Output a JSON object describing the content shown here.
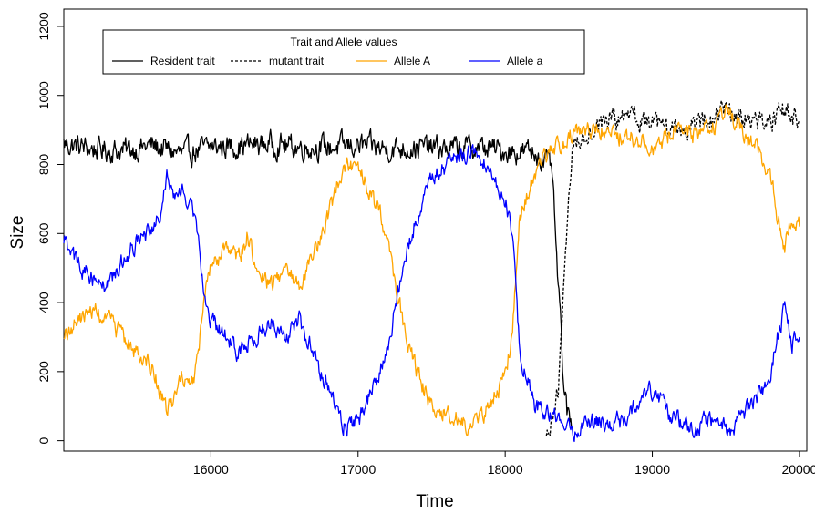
{
  "chart_data": {
    "type": "line",
    "title": "",
    "xlabel": "Time",
    "ylabel": "Size",
    "xlim": [
      15000,
      20050
    ],
    "ylim": [
      -30,
      1250
    ],
    "x_ticks": [
      16000,
      17000,
      18000,
      19000,
      20000
    ],
    "y_ticks": [
      0,
      200,
      400,
      600,
      800,
      1000,
      1200
    ],
    "grid": false,
    "legend": {
      "title": "Trait and Allele values",
      "placement": "top-left"
    },
    "series": [
      {
        "name": "Resident trait",
        "color": "#000000",
        "dash": "solid",
        "noise": 28,
        "points": [
          [
            15000,
            860
          ],
          [
            15200,
            845
          ],
          [
            15400,
            840
          ],
          [
            15600,
            855
          ],
          [
            15800,
            830
          ],
          [
            16000,
            850
          ],
          [
            16200,
            855
          ],
          [
            16400,
            860
          ],
          [
            16600,
            850
          ],
          [
            16800,
            850
          ],
          [
            17000,
            855
          ],
          [
            17200,
            845
          ],
          [
            17400,
            850
          ],
          [
            17600,
            845
          ],
          [
            17800,
            850
          ],
          [
            18000,
            840
          ],
          [
            18200,
            835
          ],
          [
            18280,
            810
          ],
          [
            18320,
            780
          ],
          [
            18340,
            600
          ],
          [
            18360,
            450
          ],
          [
            18380,
            300
          ],
          [
            18400,
            150
          ],
          [
            18420,
            80
          ],
          [
            18450,
            40
          ]
        ]
      },
      {
        "name": "mutant trait",
        "color": "#000000",
        "dash": "dashed",
        "noise": 25,
        "points": [
          [
            18280,
            10
          ],
          [
            18320,
            40
          ],
          [
            18360,
            150
          ],
          [
            18400,
            450
          ],
          [
            18430,
            700
          ],
          [
            18460,
            860
          ],
          [
            18550,
            890
          ],
          [
            18700,
            930
          ],
          [
            18900,
            930
          ],
          [
            19100,
            900
          ],
          [
            19300,
            915
          ],
          [
            19500,
            950
          ],
          [
            19700,
            930
          ],
          [
            19800,
            910
          ],
          [
            19900,
            960
          ],
          [
            20000,
            920
          ]
        ]
      },
      {
        "name": "Allele A",
        "color": "#FFA500",
        "dash": "solid",
        "noise": 22,
        "points": [
          [
            15000,
            300
          ],
          [
            15100,
            350
          ],
          [
            15200,
            380
          ],
          [
            15300,
            350
          ],
          [
            15400,
            300
          ],
          [
            15500,
            250
          ],
          [
            15580,
            230
          ],
          [
            15650,
            150
          ],
          [
            15700,
            80
          ],
          [
            15750,
            120
          ],
          [
            15800,
            200
          ],
          [
            15850,
            150
          ],
          [
            15900,
            200
          ],
          [
            15950,
            400
          ],
          [
            16000,
            500
          ],
          [
            16100,
            550
          ],
          [
            16200,
            530
          ],
          [
            16250,
            600
          ],
          [
            16300,
            500
          ],
          [
            16400,
            450
          ],
          [
            16500,
            500
          ],
          [
            16600,
            450
          ],
          [
            16700,
            550
          ],
          [
            16800,
            650
          ],
          [
            16900,
            800
          ],
          [
            17000,
            800
          ],
          [
            17100,
            700
          ],
          [
            17200,
            600
          ],
          [
            17300,
            350
          ],
          [
            17400,
            200
          ],
          [
            17500,
            100
          ],
          [
            17600,
            80
          ],
          [
            17700,
            50
          ],
          [
            17800,
            50
          ],
          [
            17900,
            100
          ],
          [
            18000,
            200
          ],
          [
            18050,
            300
          ],
          [
            18100,
            650
          ],
          [
            18200,
            780
          ],
          [
            18300,
            830
          ],
          [
            18400,
            870
          ],
          [
            18500,
            900
          ],
          [
            18600,
            900
          ],
          [
            18700,
            900
          ],
          [
            18800,
            880
          ],
          [
            18900,
            870
          ],
          [
            19000,
            850
          ],
          [
            19100,
            880
          ],
          [
            19200,
            900
          ],
          [
            19300,
            880
          ],
          [
            19400,
            900
          ],
          [
            19500,
            950
          ],
          [
            19600,
            900
          ],
          [
            19700,
            850
          ],
          [
            19800,
            780
          ],
          [
            19850,
            650
          ],
          [
            19900,
            560
          ],
          [
            19950,
            650
          ],
          [
            20000,
            620
          ]
        ]
      },
      {
        "name": "Allele a",
        "color": "#0000FF",
        "dash": "solid",
        "noise": 22,
        "points": [
          [
            15000,
            580
          ],
          [
            15100,
            510
          ],
          [
            15200,
            470
          ],
          [
            15300,
            450
          ],
          [
            15400,
            520
          ],
          [
            15500,
            580
          ],
          [
            15600,
            600
          ],
          [
            15650,
            650
          ],
          [
            15700,
            780
          ],
          [
            15750,
            700
          ],
          [
            15800,
            720
          ],
          [
            15850,
            700
          ],
          [
            15900,
            650
          ],
          [
            15950,
            450
          ],
          [
            16000,
            350
          ],
          [
            16100,
            300
          ],
          [
            16200,
            250
          ],
          [
            16300,
            300
          ],
          [
            16400,
            350
          ],
          [
            16500,
            300
          ],
          [
            16600,
            350
          ],
          [
            16700,
            250
          ],
          [
            16800,
            150
          ],
          [
            16900,
            50
          ],
          [
            17000,
            50
          ],
          [
            17100,
            150
          ],
          [
            17200,
            250
          ],
          [
            17300,
            500
          ],
          [
            17400,
            650
          ],
          [
            17500,
            750
          ],
          [
            17600,
            800
          ],
          [
            17700,
            830
          ],
          [
            17800,
            840
          ],
          [
            17900,
            780
          ],
          [
            18000,
            700
          ],
          [
            18050,
            600
          ],
          [
            18100,
            250
          ],
          [
            18200,
            100
          ],
          [
            18300,
            80
          ],
          [
            18400,
            50
          ],
          [
            18500,
            30
          ],
          [
            18600,
            50
          ],
          [
            18700,
            50
          ],
          [
            18800,
            60
          ],
          [
            18900,
            120
          ],
          [
            19000,
            150
          ],
          [
            19100,
            80
          ],
          [
            19200,
            50
          ],
          [
            19300,
            40
          ],
          [
            19400,
            60
          ],
          [
            19500,
            30
          ],
          [
            19600,
            60
          ],
          [
            19700,
            120
          ],
          [
            19800,
            180
          ],
          [
            19850,
            300
          ],
          [
            19900,
            380
          ],
          [
            19950,
            280
          ],
          [
            20000,
            300
          ]
        ]
      }
    ]
  }
}
